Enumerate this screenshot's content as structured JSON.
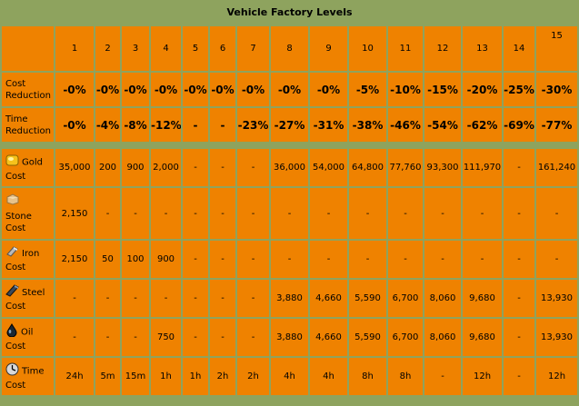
{
  "title": "Vehicle Factory Levels",
  "levels": [
    "1",
    "2",
    "3",
    "4",
    "5",
    "6",
    "7",
    "8",
    "9",
    "10",
    "11",
    "12",
    "13",
    "14",
    "15"
  ],
  "rows": {
    "cost_reduction": {
      "label": "Cost Reduction",
      "values": [
        "-0%",
        "-0%",
        "-0%",
        "-0%",
        "-0%",
        "-0%",
        "-0%",
        "-0%",
        "-0%",
        "-5%",
        "-10%",
        "-15%",
        "-20%",
        "-25%",
        "-30%"
      ]
    },
    "time_reduction": {
      "label": "Time Reduction",
      "values": [
        "-0%",
        "-4%",
        "-8%",
        "-12%",
        "-",
        "-",
        "-23%",
        "-27%",
        "-31%",
        "-38%",
        "-46%",
        "-54%",
        "-62%",
        "-69%",
        "-77%"
      ]
    },
    "gold": {
      "label": "Gold Cost",
      "icon": "gold-icon",
      "values": [
        "35,000",
        "200",
        "900",
        "2,000",
        "-",
        "-",
        "-",
        "36,000",
        "54,000",
        "64,800",
        "77,760",
        "93,300",
        "111,970",
        "-",
        "161,240"
      ]
    },
    "stone": {
      "label": "Stone Cost",
      "icon": "stone-icon",
      "values": [
        "2,150",
        "-",
        "-",
        "-",
        "-",
        "-",
        "-",
        "-",
        "-",
        "-",
        "-",
        "-",
        "-",
        "-",
        "-"
      ]
    },
    "iron": {
      "label": "Iron Cost",
      "icon": "iron-icon",
      "values": [
        "2,150",
        "50",
        "100",
        "900",
        "-",
        "-",
        "-",
        "-",
        "-",
        "-",
        "-",
        "-",
        "-",
        "-",
        "-"
      ]
    },
    "steel": {
      "label": "Steel Cost",
      "icon": "steel-icon",
      "values": [
        "-",
        "-",
        "-",
        "-",
        "-",
        "-",
        "-",
        "3,880",
        "4,660",
        "5,590",
        "6,700",
        "8,060",
        "9,680",
        "-",
        "13,930"
      ]
    },
    "oil": {
      "label": "Oil Cost",
      "icon": "oil-icon",
      "values": [
        "-",
        "-",
        "-",
        "750",
        "-",
        "-",
        "-",
        "3,880",
        "4,660",
        "5,590",
        "6,700",
        "8,060",
        "9,680",
        "-",
        "13,930"
      ]
    },
    "time": {
      "label": "Time Cost",
      "icon": "clock-icon",
      "values": [
        "24h",
        "5m",
        "15m",
        "1h",
        "1h",
        "2h",
        "2h",
        "4h",
        "4h",
        "8h",
        "8h",
        "-",
        "12h",
        "-",
        "12h"
      ]
    }
  }
}
